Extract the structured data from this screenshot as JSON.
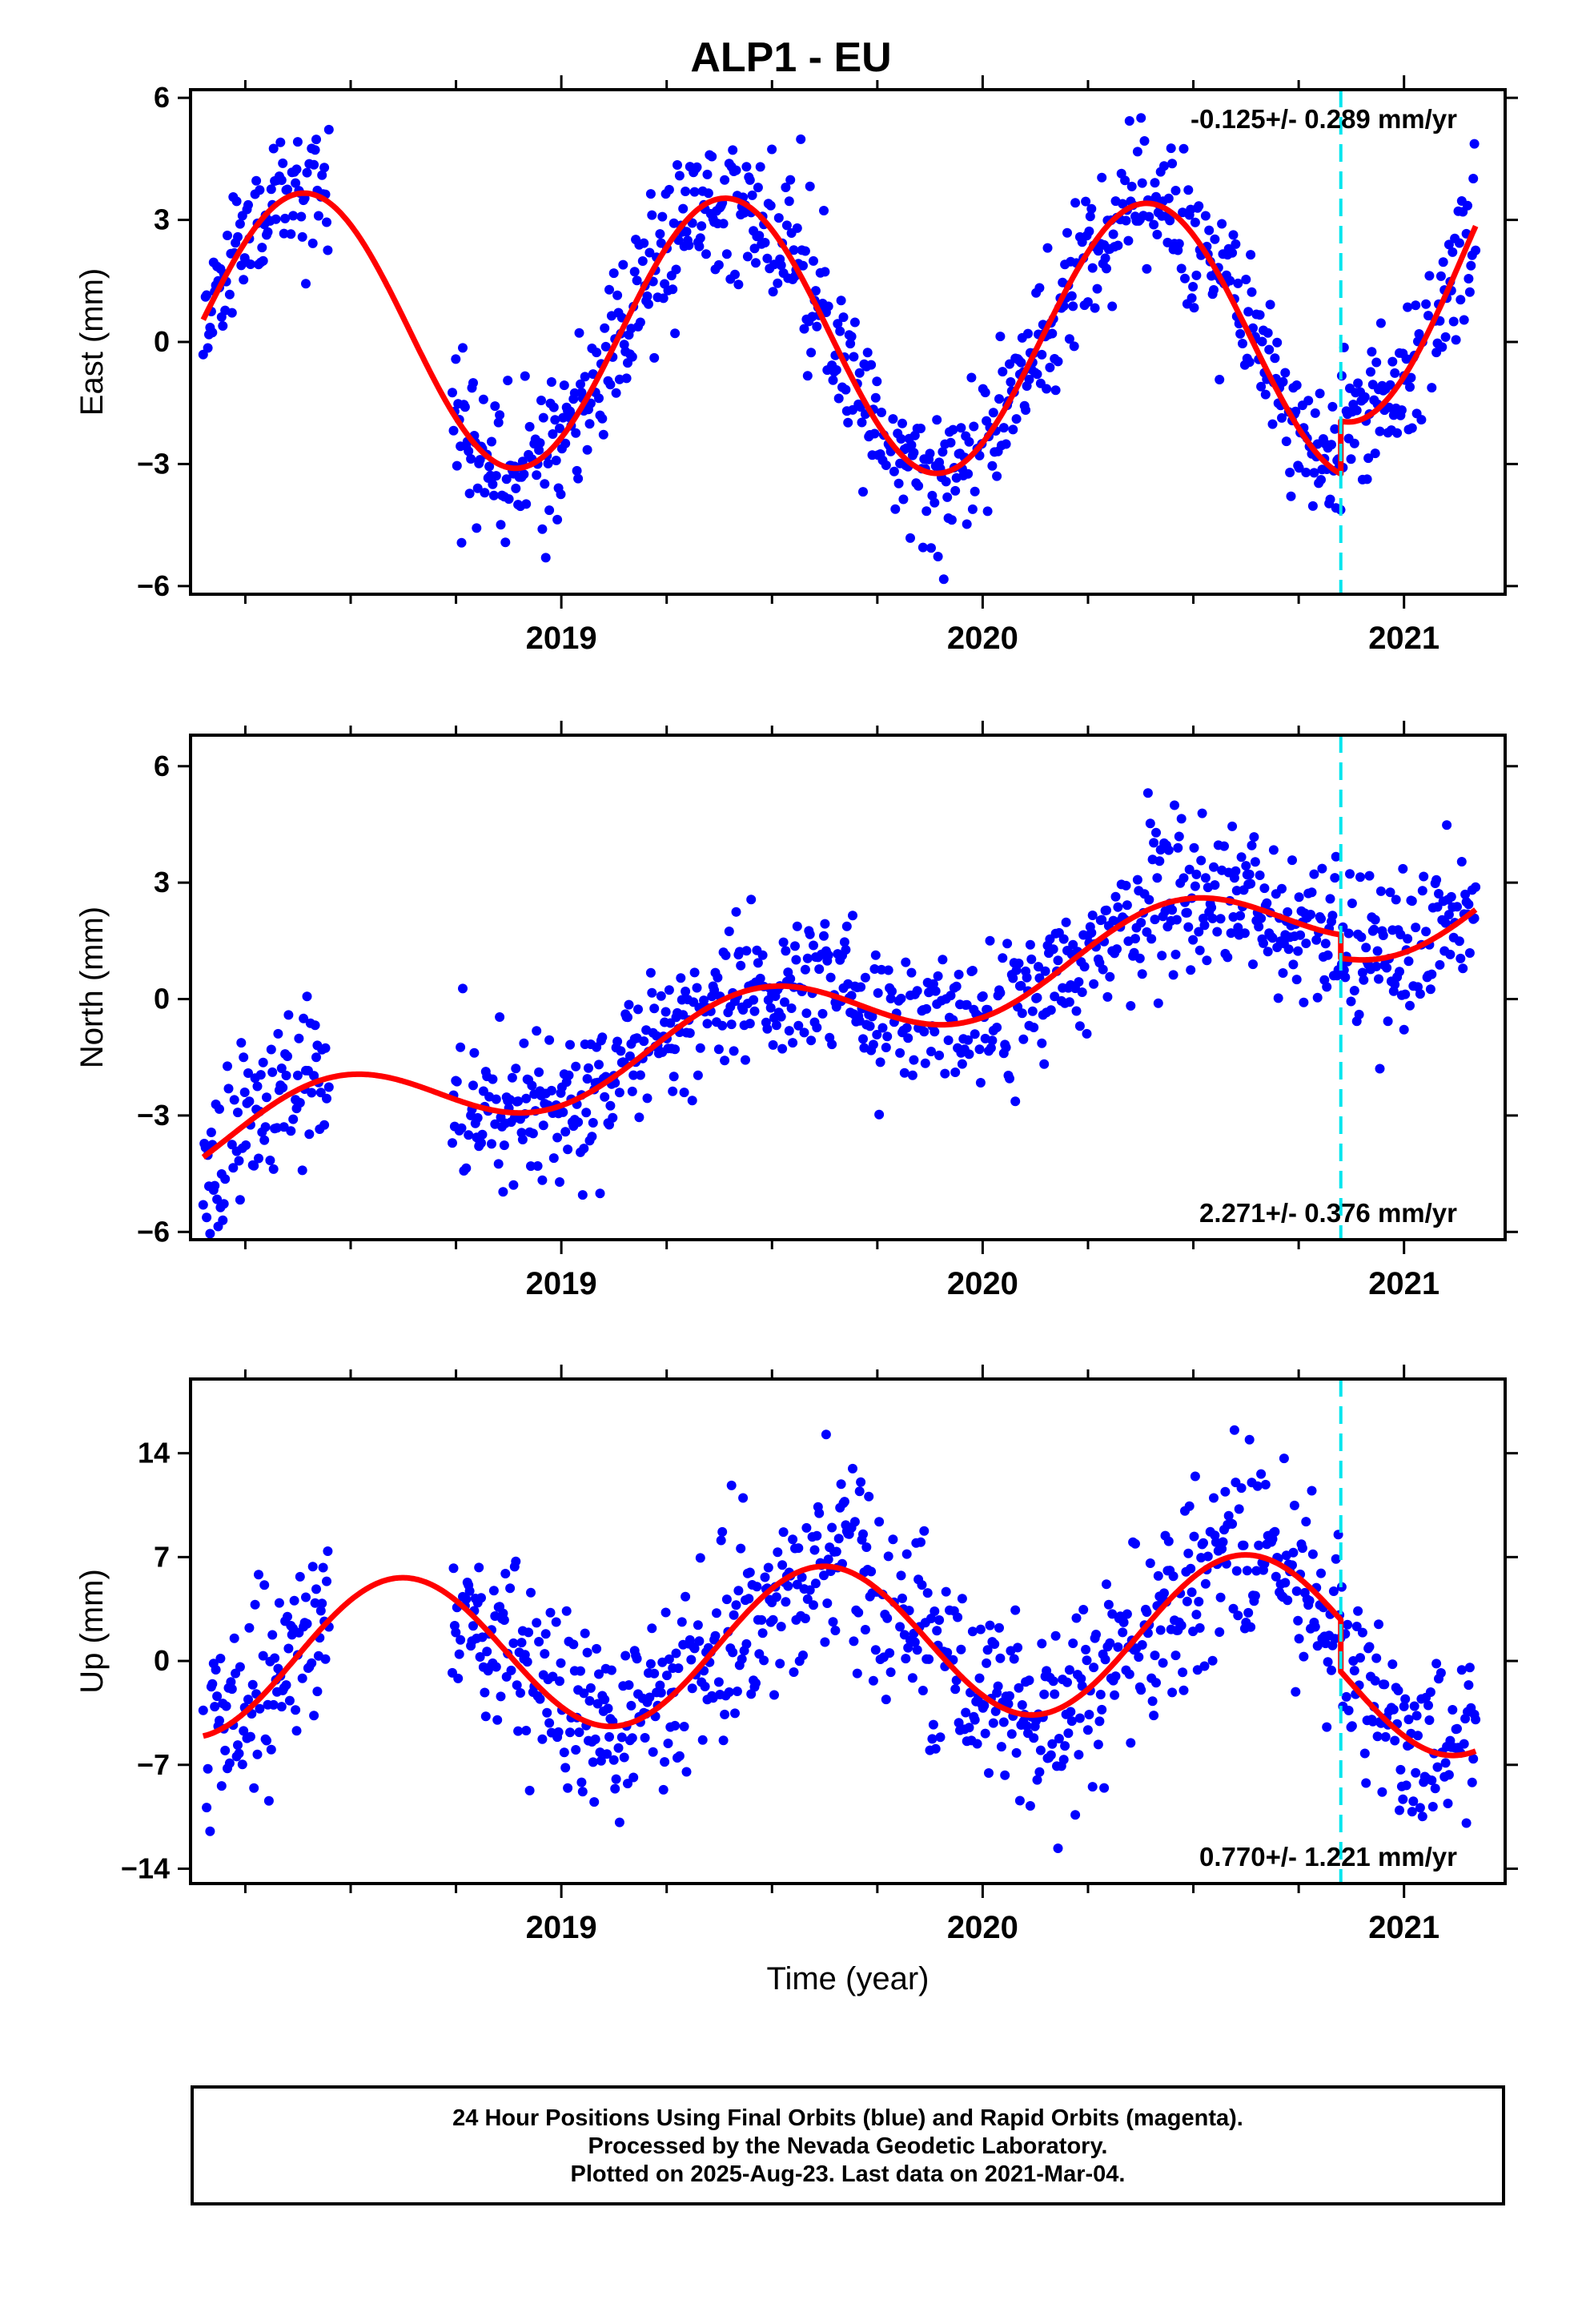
{
  "title": "ALP1 - EU",
  "footer": {
    "line1": "24 Hour Positions Using Final Orbits (blue) and Rapid Orbits (magenta).",
    "line2": "Processed by the Nevada Geodetic Laboratory.",
    "line3": "Plotted on 2025-Aug-23. Last data on 2021-Mar-04."
  },
  "colors": {
    "points": "#0000ff",
    "fit": "#ff0000",
    "offset_line": "#00e5ee",
    "frame": "#000000"
  },
  "chart_data": [
    {
      "type": "scatter",
      "component": "east",
      "ylabel": "East (mm)",
      "xlabel": "",
      "xlim": [
        2018.12,
        2021.24
      ],
      "ylim": [
        -6.2,
        6.2
      ],
      "yticks": [
        -6,
        -3,
        0,
        3,
        6
      ],
      "xticks": [
        "2019",
        "2020",
        "2021"
      ],
      "rate_text": "-0.125+/- 0.289 mm/yr",
      "rate_position": "top-right",
      "offset_epoch": 2020.85,
      "data_start": 2018.15,
      "data_end": 2021.17,
      "gap": [
        2018.45,
        2018.74
      ],
      "fit": {
        "mean": 0.15,
        "rate": -0.125,
        "seasonal_amplitude": 3.35,
        "seasonal_peak_phase": 0.39,
        "step": 1.3,
        "post_offset_trend": 3.0
      },
      "scatter_sigma": 0.9,
      "seed": 11
    },
    {
      "type": "scatter",
      "component": "north",
      "ylabel": "North (mm)",
      "xlabel": "",
      "xlim": [
        2018.12,
        2021.24
      ],
      "ylim": [
        -6.2,
        6.8
      ],
      "yticks": [
        -6,
        -3,
        0,
        3,
        6
      ],
      "xticks": [
        "2019",
        "2020",
        "2021"
      ],
      "rate_text": "2.271+/- 0.376 mm/yr",
      "rate_position": "bottom-right",
      "offset_epoch": 2020.85,
      "data_start": 2018.15,
      "data_end": 2021.17,
      "gap": [
        2018.45,
        2018.74
      ],
      "fit": {
        "mean": -0.3,
        "rate": 2.271,
        "seasonal_amplitude": 1.0,
        "seasonal_peak_phase": 0.46,
        "step": -0.6,
        "post_offset_trend": 0.0
      },
      "scatter_sigma": 0.95,
      "seed": 23
    },
    {
      "type": "scatter",
      "component": "up",
      "ylabel": "Up (mm)",
      "xlabel": "Time (year)",
      "xlim": [
        2018.12,
        2021.24
      ],
      "ylim": [
        -15,
        19
      ],
      "yticks": [
        -14,
        -7,
        0,
        7,
        14
      ],
      "xticks": [
        "2019",
        "2020",
        "2021"
      ],
      "rate_text": "0.770+/- 1.221 mm/yr",
      "rate_position": "bottom-right",
      "offset_epoch": 2020.85,
      "data_start": 2018.15,
      "data_end": 2021.17,
      "gap": [
        2018.45,
        2018.74
      ],
      "fit": {
        "mean": 1.2,
        "rate": 0.77,
        "seasonal_amplitude": 5.2,
        "seasonal_peak_phase": 0.62,
        "step": -3.5,
        "post_offset_trend": 0.0
      },
      "scatter_sigma": 3.2,
      "seed": 37
    }
  ]
}
